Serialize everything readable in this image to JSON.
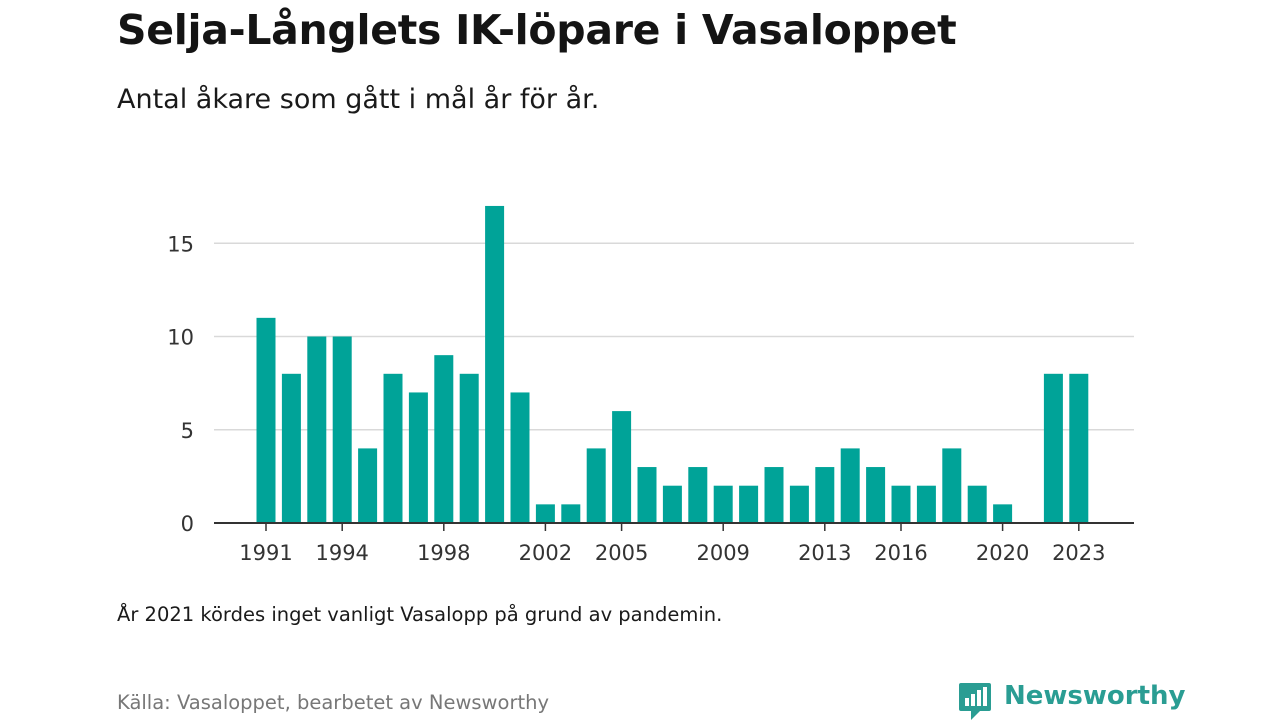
{
  "title": "Selja-Långlets IK-löpare i Vasaloppet",
  "subtitle": "Antal åkare som gått i mål år för år.",
  "note": "År 2021 kördes inget vanligt Vasalopp på grund av pandemin.",
  "source": "Källa: Vasaloppet, bearbetet av Newsworthy",
  "brand": {
    "name": "Newsworthy",
    "icon": "newsworthy-logo-icon",
    "color": "#2a9d93"
  },
  "chart_data": {
    "type": "bar",
    "title": "Selja-Långlets IK-löpare i Vasaloppet",
    "subtitle": "Antal åkare som gått i mål år för år.",
    "xlabel": "",
    "ylabel": "",
    "ylim": [
      0,
      17
    ],
    "yticks": [
      0,
      5,
      10,
      15
    ],
    "xticks": [
      1991,
      1994,
      1998,
      2002,
      2005,
      2009,
      2013,
      2016,
      2020,
      2023
    ],
    "grid": true,
    "legend": "none",
    "bar_color": "#00a398",
    "categories": [
      1991,
      1992,
      1993,
      1994,
      1995,
      1996,
      1997,
      1998,
      1999,
      2000,
      2001,
      2002,
      2003,
      2004,
      2005,
      2006,
      2007,
      2008,
      2009,
      2010,
      2011,
      2012,
      2013,
      2014,
      2015,
      2016,
      2017,
      2018,
      2019,
      2020,
      2021,
      2022,
      2023
    ],
    "values": [
      11,
      8,
      10,
      10,
      4,
      8,
      7,
      9,
      8,
      17,
      7,
      1,
      1,
      4,
      6,
      3,
      2,
      3,
      2,
      2,
      3,
      2,
      3,
      4,
      3,
      2,
      2,
      4,
      2,
      1,
      null,
      8,
      8
    ]
  }
}
